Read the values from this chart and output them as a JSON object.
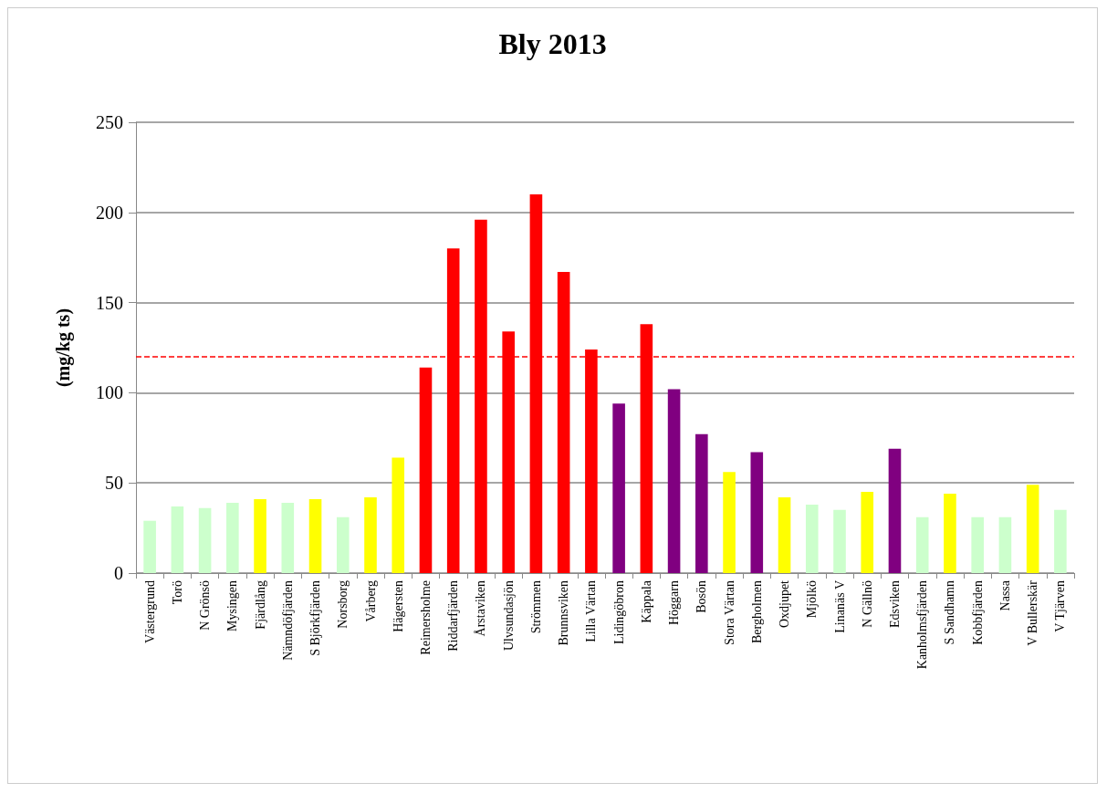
{
  "chart_data": {
    "type": "bar",
    "title": "Bly 2013",
    "ylabel": "(mg/kg ts)",
    "categories": [
      "Västergrund",
      "Torö",
      "N Grönsö",
      "Mysingen",
      "Fjärdlång",
      "Nämndöfjärden",
      "S Björkfjärden",
      "Norsborg",
      "Vårberg",
      "Hägersten",
      "Reimersholme",
      "Riddarfjärden",
      "Årstaviken",
      "Ulvsundasjön",
      "Strömmen",
      "Brunnsviken",
      "Lilla Värtan",
      "Lidingöbron",
      "Käppala",
      "Höggarn",
      "Bosön",
      "Stora Värtan",
      "Bergholmen",
      "Oxdjupet",
      "Mjölkö",
      "Linanäs V",
      "N Gällnö",
      "Edsviken",
      "Kanholmsfjärden",
      "S Sandhamn",
      "Kobbfjärden",
      "Nassa",
      "V Bullerskär",
      "V Tjärven"
    ],
    "values": [
      29,
      37,
      36,
      39,
      41,
      39,
      41,
      31,
      42,
      64,
      114,
      180,
      196,
      134,
      210,
      167,
      124,
      94,
      138,
      102,
      77,
      56,
      67,
      42,
      38,
      35,
      45,
      69,
      31,
      44,
      31,
      31,
      49,
      35
    ],
    "colors": [
      "#ccffcc",
      "#ccffcc",
      "#ccffcc",
      "#ccffcc",
      "#ffff00",
      "#ccffcc",
      "#ffff00",
      "#ccffcc",
      "#ffff00",
      "#ffff00",
      "#ff0000",
      "#ff0000",
      "#ff0000",
      "#ff0000",
      "#ff0000",
      "#ff0000",
      "#ff0000",
      "#800080",
      "#ff0000",
      "#800080",
      "#800080",
      "#ffff00",
      "#800080",
      "#ffff00",
      "#ccffcc",
      "#ccffcc",
      "#ffff00",
      "#800080",
      "#ccffcc",
      "#ffff00",
      "#ccffcc",
      "#ccffcc",
      "#ffff00",
      "#ccffcc"
    ],
    "ylim": [
      0,
      250
    ],
    "yticks": [
      0,
      50,
      100,
      150,
      200,
      250
    ],
    "grid": "y",
    "ref_lines": [
      {
        "axis": "y",
        "value": 120,
        "color": "#ff0000",
        "line_style": "dashed"
      }
    ]
  }
}
